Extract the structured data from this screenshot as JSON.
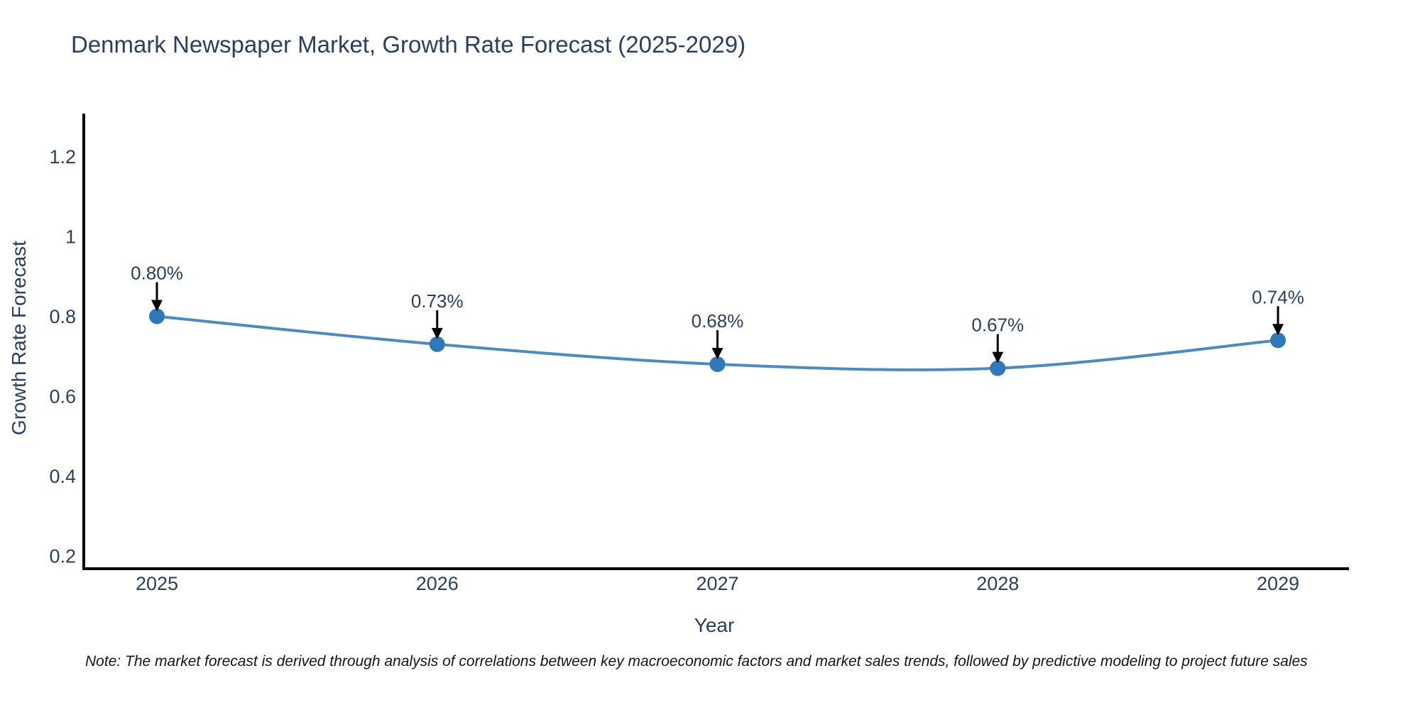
{
  "title": "Denmark Newspaper Market, Growth Rate Forecast (2025-2029)",
  "note": "Note: The market forecast is derived through analysis of correlations between key macroeconomic factors and market sales trends, followed by predictive modeling to project future sales",
  "chart_data": {
    "type": "line",
    "title": "Denmark Newspaper Market, Growth Rate Forecast (2025-2029)",
    "xlabel": "Year",
    "ylabel": "Growth Rate Forecast",
    "categories": [
      "2025",
      "2026",
      "2027",
      "2028",
      "2029"
    ],
    "series": [
      {
        "name": "Growth Rate Forecast",
        "values": [
          0.8,
          0.73,
          0.68,
          0.67,
          0.74
        ],
        "point_labels": [
          "0.80%",
          "0.73%",
          "0.68%",
          "0.67%",
          "0.74%"
        ]
      }
    ],
    "line_shape": "spline",
    "markers": true,
    "annotations_with_arrows": true,
    "grid": false,
    "legend": "none",
    "yticks": [
      0.2,
      0.4,
      0.6,
      0.8,
      1,
      1.2
    ],
    "ytick_labels": [
      "0.2",
      "0.4",
      "0.6",
      "0.8",
      "1",
      "1.2"
    ],
    "ylim": [
      0.17,
      1.31
    ],
    "colors": {
      "line": "#4a8bc2",
      "marker": "#2f78ba",
      "text": "#2a3f5f",
      "axis": "#000000",
      "arrow": "#000000",
      "note_text": "#141414",
      "background": "#ffffff"
    }
  }
}
